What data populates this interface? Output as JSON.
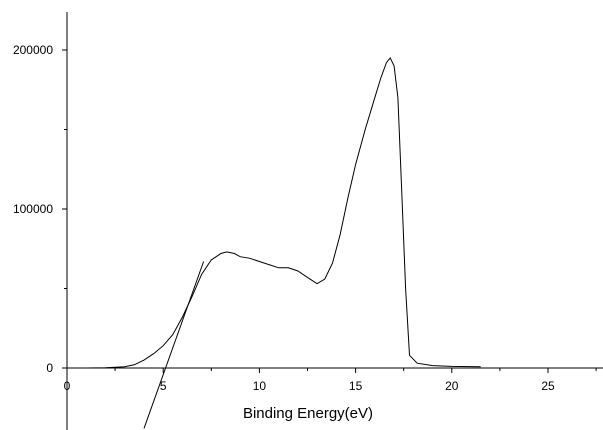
{
  "chart_data": {
    "type": "line",
    "title": "",
    "xlabel": "Binding Energy(eV)",
    "ylabel": "",
    "xlim": [
      0,
      28
    ],
    "ylim": [
      -38000,
      225000
    ],
    "x_ticks": [
      0,
      5,
      10,
      15,
      20,
      25
    ],
    "x_tick_labels": [
      "0",
      "5",
      "10",
      "15",
      "20",
      "25"
    ],
    "y_ticks": [
      0,
      100000,
      200000
    ],
    "y_tick_labels": [
      "0",
      "100000",
      "200000"
    ],
    "grid": false,
    "legend": "none",
    "series": [
      {
        "role": "spectrum",
        "x": [
          0,
          1,
          2,
          3,
          3.5,
          4,
          4.5,
          5,
          5.5,
          6,
          6.5,
          7,
          7.5,
          8,
          8.3,
          8.7,
          9,
          9.5,
          10,
          10.5,
          11,
          11.5,
          12,
          12.5,
          13,
          13.4,
          13.8,
          14.2,
          14.6,
          15,
          15.5,
          16,
          16.3,
          16.6,
          16.8,
          17.0,
          17.2,
          17.4,
          17.6,
          17.8,
          18.2,
          19,
          20,
          21.5
        ],
        "y": [
          0,
          0,
          200,
          800,
          2000,
          5000,
          9000,
          14000,
          21000,
          32000,
          45000,
          59000,
          68000,
          72000,
          73000,
          72000,
          70000,
          69000,
          67000,
          65000,
          63000,
          63000,
          61000,
          57000,
          53000,
          56000,
          66000,
          84000,
          107000,
          128000,
          150000,
          170000,
          182000,
          192000,
          195000,
          190000,
          170000,
          110000,
          50000,
          8000,
          3000,
          1500,
          1000,
          800
        ]
      },
      {
        "role": "linear-extrapolation",
        "x": [
          4.0,
          7.1
        ],
        "y": [
          -38000,
          67000
        ]
      }
    ]
  }
}
